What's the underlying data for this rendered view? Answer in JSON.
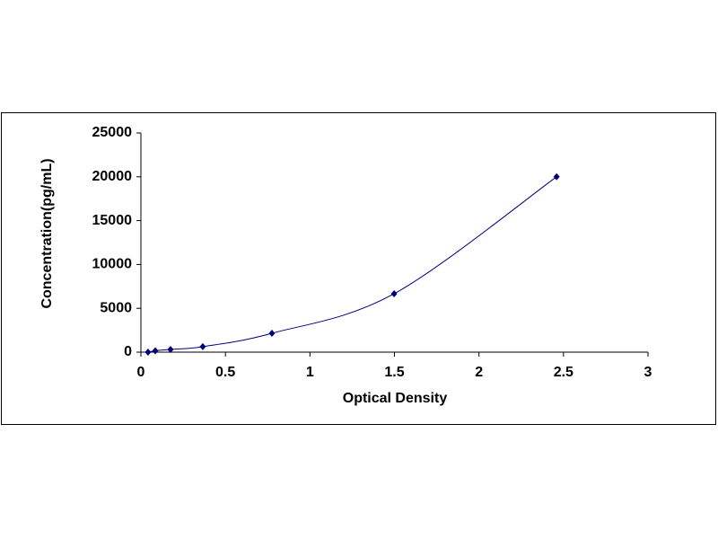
{
  "chart_data": {
    "type": "scatter",
    "x_label": "Optical Density",
    "y_label": "Concentration(pg/mL)",
    "x": [
      0.042,
      0.085,
      0.175,
      0.366,
      0.775,
      1.498,
      2.459
    ],
    "values": [
      0,
      156,
      312,
      625,
      2150,
      6660,
      20000
    ],
    "color": "#00007a",
    "xlim": [
      0,
      3
    ],
    "xticks": [
      0,
      0.5,
      1,
      1.5,
      2,
      2.5,
      3
    ],
    "ylim": [
      0,
      25000
    ],
    "yticks": [
      0,
      5000,
      10000,
      15000,
      20000,
      25000
    ],
    "grid": false
  }
}
